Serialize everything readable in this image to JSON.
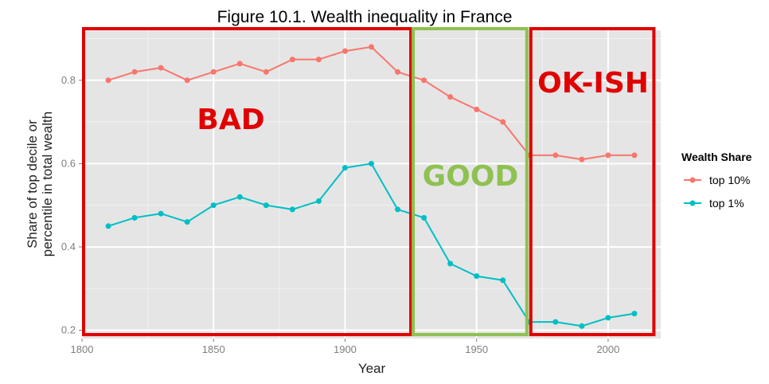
{
  "chart_data": {
    "type": "line",
    "title": "Figure 10.1. Wealth inequality in France",
    "xlabel": "Year",
    "ylabel_line1": "Share of top decile or",
    "ylabel_line2": "percentile in total wealth",
    "xlim": [
      1800,
      2020
    ],
    "ylim": [
      0.18,
      0.92
    ],
    "xticks": [
      1800,
      1850,
      1900,
      1950,
      2000
    ],
    "yticks": [
      0.2,
      0.4,
      0.6,
      0.8
    ],
    "ytick_labels": [
      "0.2",
      "0.4",
      "0.6",
      "0.8"
    ],
    "x": [
      1810,
      1820,
      1830,
      1840,
      1850,
      1860,
      1870,
      1880,
      1890,
      1900,
      1910,
      1920,
      1930,
      1940,
      1950,
      1960,
      1970,
      1980,
      1990,
      2000,
      2010
    ],
    "series": [
      {
        "name": "top 10%",
        "color": "#F8766D",
        "values": [
          0.8,
          0.82,
          0.83,
          0.8,
          0.82,
          0.84,
          0.82,
          0.85,
          0.85,
          0.87,
          0.88,
          0.82,
          0.8,
          0.76,
          0.73,
          0.7,
          0.62,
          0.62,
          0.61,
          0.62,
          0.62
        ]
      },
      {
        "name": "top 1%",
        "color": "#00BFC4",
        "values": [
          0.45,
          0.47,
          0.48,
          0.46,
          0.5,
          0.52,
          0.5,
          0.49,
          0.51,
          0.59,
          0.6,
          0.49,
          0.47,
          0.36,
          0.33,
          0.32,
          0.22,
          0.22,
          0.21,
          0.23,
          0.24
        ]
      }
    ],
    "legend": {
      "title": "Wealth Share",
      "placement": "right"
    },
    "grid": true,
    "annotations": [
      {
        "label": "BAD",
        "color": "#e00000",
        "border_color": "#e00000",
        "x_start": 1800,
        "x_end": 1925
      },
      {
        "label": "GOOD",
        "color": "#8fc152",
        "border_color": "#8fc152",
        "x_start": 1925,
        "x_end": 1970
      },
      {
        "label": "OK-ISH",
        "color": "#e00000",
        "border_color": "#e00000",
        "x_start": 1970,
        "x_end": 2018
      }
    ]
  }
}
